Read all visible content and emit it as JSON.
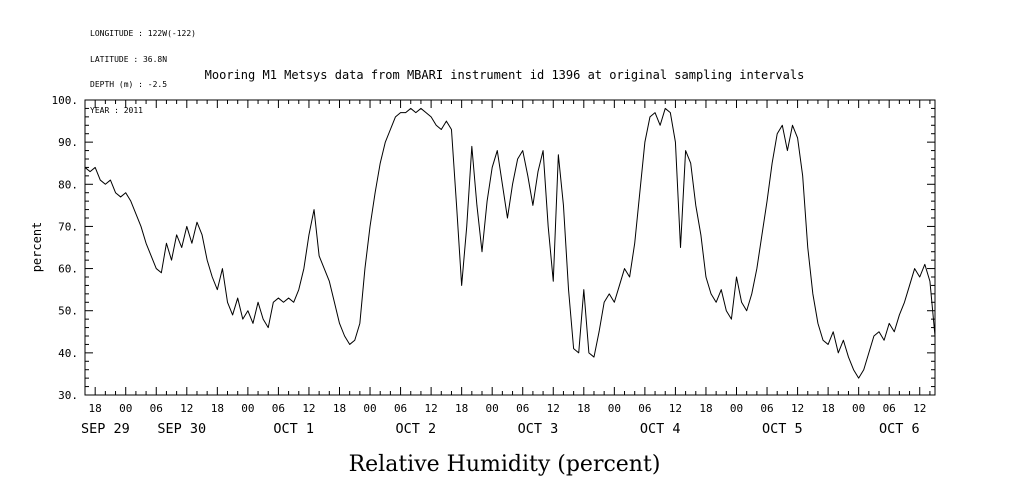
{
  "header": {
    "metadata_lines": [
      "LONGITUDE : 122W(-122)",
      "LATITUDE : 36.8N",
      "DEPTH (m) : -2.5",
      "YEAR : 2011"
    ],
    "title": "Mooring M1 Metsys data from MBARI instrument id 1396 at original sampling intervals"
  },
  "chart_data": {
    "type": "line",
    "title": "Mooring M1 Metsys data from MBARI instrument id 1396 at original sampling intervals",
    "xlabel": "Relative Humidity (percent)",
    "ylabel": "percent",
    "ylim": [
      30,
      100
    ],
    "y_major_step": 10,
    "y_minor_step": 2,
    "y_tick_labels": [
      "100.",
      "90.",
      "80.",
      "70.",
      "60.",
      "50.",
      "40.",
      "30."
    ],
    "x_start_label": "2011 SEP 29 16:00",
    "x_interval_hours": 1,
    "x_total_hours": 167,
    "x_tick_first_hour": 2,
    "x_tick_step_hours": 6,
    "x_minor_step_hours": 2,
    "x_tick_labels": [
      "18",
      "00",
      "06",
      "12",
      "18",
      "00",
      "06",
      "12",
      "18",
      "00",
      "06",
      "12",
      "18",
      "00",
      "06",
      "12",
      "18",
      "00",
      "06",
      "12",
      "18",
      "00",
      "06",
      "12",
      "18",
      "00",
      "06",
      "12"
    ],
    "date_labels": [
      {
        "label": "SEP 29",
        "hour": 4
      },
      {
        "label": "SEP 30",
        "hour": 19
      },
      {
        "label": "OCT 1",
        "hour": 41
      },
      {
        "label": "OCT 2",
        "hour": 65
      },
      {
        "label": "OCT 3",
        "hour": 89
      },
      {
        "label": "OCT 4",
        "hour": 113
      },
      {
        "label": "OCT 5",
        "hour": 137
      },
      {
        "label": "OCT 6",
        "hour": 160
      }
    ],
    "grid": false,
    "legend": "none",
    "line_color": "#000000",
    "series": [
      {
        "name": "relative_humidity",
        "values": [
          84,
          83,
          84,
          81,
          80,
          81,
          78,
          77,
          78,
          76,
          73,
          70,
          66,
          63,
          60,
          59,
          66,
          62,
          68,
          65,
          70,
          66,
          71,
          68,
          62,
          58,
          55,
          60,
          52,
          49,
          53,
          48,
          50,
          47,
          52,
          48,
          46,
          52,
          53,
          52,
          53,
          52,
          55,
          60,
          68,
          74,
          63,
          60,
          57,
          52,
          47,
          44,
          42,
          43,
          47,
          60,
          70,
          78,
          85,
          90,
          93,
          96,
          97,
          97,
          98,
          97,
          98,
          97,
          96,
          94,
          93,
          95,
          93,
          75,
          56,
          70,
          89,
          75,
          64,
          76,
          84,
          88,
          80,
          72,
          80,
          86,
          88,
          82,
          75,
          83,
          88,
          70,
          57,
          87,
          75,
          55,
          41,
          40,
          55,
          40,
          39,
          45,
          52,
          54,
          52,
          56,
          60,
          58,
          66,
          78,
          90,
          96,
          97,
          94,
          98,
          97,
          90,
          65,
          88,
          85,
          75,
          68,
          58,
          54,
          52,
          55,
          50,
          48,
          58,
          52,
          50,
          54,
          60,
          68,
          76,
          85,
          92,
          94,
          88,
          94,
          91,
          82,
          65,
          54,
          47,
          43,
          42,
          45,
          40,
          43,
          39,
          36,
          34,
          36,
          40,
          44,
          45,
          43,
          47,
          45,
          49,
          52,
          56,
          60,
          58,
          61,
          57,
          44
        ]
      }
    ]
  }
}
